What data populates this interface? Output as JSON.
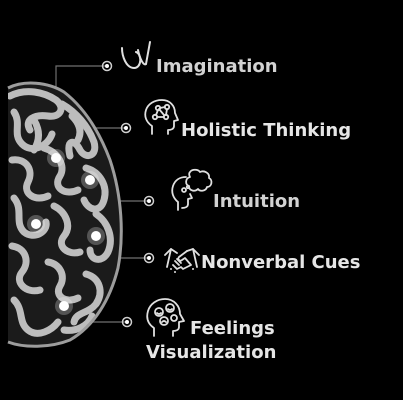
{
  "items": [
    {
      "label": "Imagination",
      "icon": "imagination-icon"
    },
    {
      "label": "Holistic Thinking",
      "icon": "head-network-icon"
    },
    {
      "label": "Intuition",
      "icon": "head-thought-icon"
    },
    {
      "label": "Nonverbal Cues",
      "icon": "handshake-icon"
    },
    {
      "label": "Feelings",
      "label2": "Visualization",
      "icon": "head-emotions-icon"
    }
  ],
  "colors": {
    "background": "#000000",
    "text": "#d2d2d2",
    "brain": "#b9b9b9",
    "connector": "#8a8a8a"
  }
}
